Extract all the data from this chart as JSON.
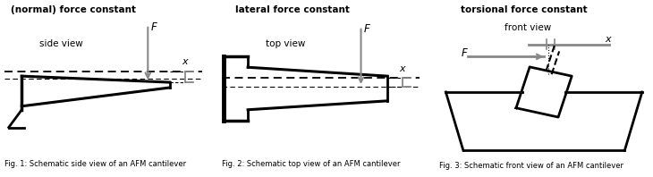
{
  "fig_width": 7.3,
  "fig_height": 1.98,
  "dpi": 100,
  "bg_color": "#ffffff",
  "title1": "(normal) force constant",
  "title2": "lateral force constant",
  "title3": "torsional force constant",
  "label1": "side view",
  "label2": "top view",
  "label3": "front view",
  "caption1": "Fig. 1: Schematic side view of an AFM cantilever",
  "caption2": "Fig. 2: Schematic top view of an AFM cantilever",
  "caption3": "Fig. 3: Schematic front view of an AFM cantilever",
  "line_color": "#000000",
  "gray_color": "#888888"
}
